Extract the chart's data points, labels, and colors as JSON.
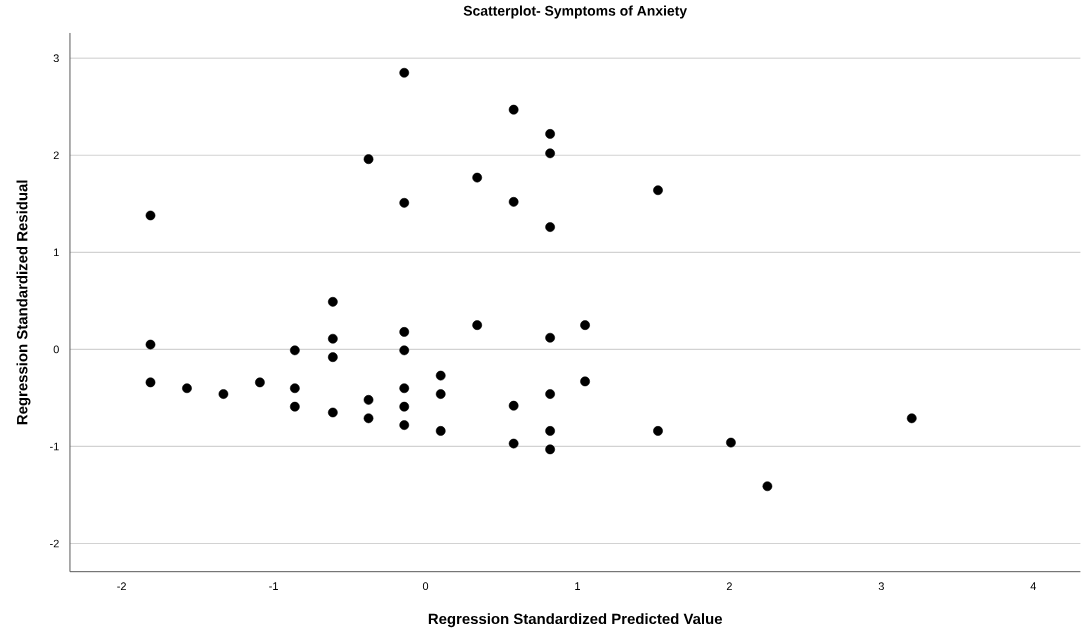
{
  "chart_data": {
    "type": "scatter",
    "title": "Scatterplot- Symptoms of Anxiety",
    "xlabel": "Regression Standardized Predicted Value",
    "ylabel": "Regression Standardized Residual",
    "x": [
      -0.14,
      -0.375,
      -0.14,
      -1.81,
      -0.61,
      0.58,
      0.82,
      0.82,
      0.34,
      1.53,
      0.58,
      0.82,
      -1.81,
      -0.61,
      -0.14,
      -0.86,
      -0.14,
      -0.61,
      0.1,
      -1.81,
      -1.09,
      -1.57,
      -0.86,
      -0.14,
      -1.33,
      0.1,
      -0.375,
      -0.86,
      -0.14,
      -0.61,
      -0.375,
      -0.14,
      0.1,
      0.34,
      1.05,
      0.82,
      1.05,
      0.82,
      0.58,
      0.82,
      1.53,
      0.58,
      0.82,
      2.01,
      2.25,
      3.2
    ],
    "values": [
      2.85,
      1.96,
      1.51,
      1.38,
      0.49,
      2.47,
      2.22,
      2.02,
      1.77,
      1.64,
      1.52,
      1.26,
      0.05,
      0.11,
      0.18,
      -0.01,
      -0.01,
      -0.08,
      -0.27,
      -0.34,
      -0.34,
      -0.4,
      -0.4,
      -0.4,
      -0.46,
      -0.46,
      -0.52,
      -0.59,
      -0.59,
      -0.65,
      -0.71,
      -0.78,
      -0.84,
      0.25,
      0.25,
      0.12,
      -0.33,
      -0.46,
      -0.58,
      -0.84,
      -0.84,
      -0.97,
      -1.03,
      -0.96,
      -1.41,
      -0.71
    ],
    "color": "#000000",
    "marker": "circle",
    "xlim": [
      -2.34,
      4.31
    ],
    "ylim": [
      -2.29,
      3.26
    ],
    "xticks": [
      -2,
      -1,
      0,
      1,
      2,
      3,
      4
    ],
    "yticks": [
      -2,
      -1,
      0,
      1,
      2,
      3
    ],
    "grid": "y"
  }
}
